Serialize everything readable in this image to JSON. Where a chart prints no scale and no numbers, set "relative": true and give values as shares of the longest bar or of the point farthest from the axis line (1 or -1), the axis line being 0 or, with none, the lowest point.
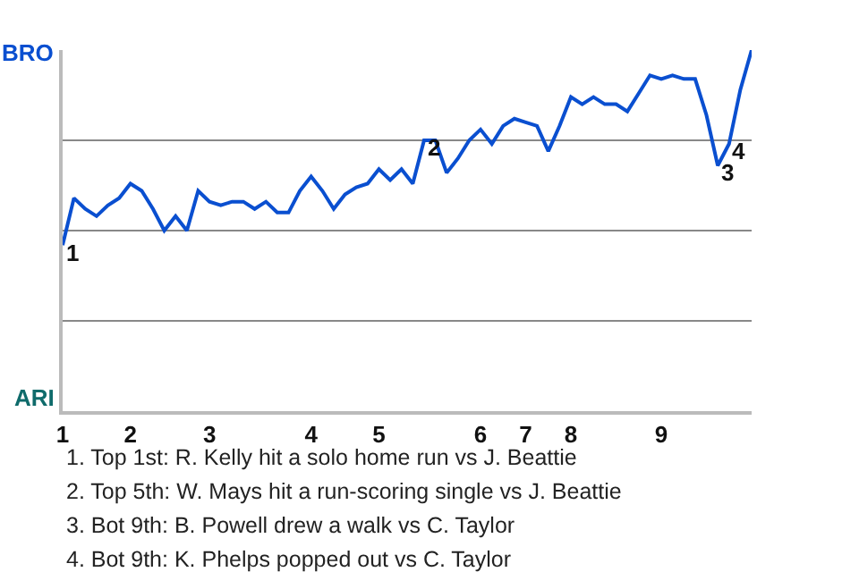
{
  "chart_data": {
    "type": "line",
    "relative": true,
    "categories": [
      "1",
      null,
      null,
      null,
      null,
      null,
      "2",
      null,
      null,
      null,
      null,
      null,
      null,
      "3",
      null,
      null,
      null,
      null,
      null,
      null,
      null,
      null,
      "4",
      null,
      null,
      null,
      null,
      null,
      "5",
      null,
      null,
      null,
      null,
      null,
      null,
      null,
      null,
      "6",
      null,
      null,
      null,
      "7",
      null,
      null,
      null,
      "8",
      null,
      null,
      null,
      null,
      null,
      null,
      null,
      "9",
      null,
      null,
      null,
      null,
      null,
      null,
      null,
      null
    ],
    "series": [
      {
        "color": "#0a4fd0",
        "values": [
          0.46,
          0.59,
          0.56,
          0.54,
          0.57,
          0.59,
          0.63,
          0.61,
          0.56,
          0.5,
          0.54,
          0.5,
          0.61,
          0.58,
          0.57,
          0.58,
          0.58,
          0.56,
          0.58,
          0.55,
          0.55,
          0.61,
          0.65,
          0.61,
          0.56,
          0.6,
          0.62,
          0.63,
          0.67,
          0.64,
          0.67,
          0.63,
          0.75,
          0.75,
          0.66,
          0.7,
          0.75,
          0.78,
          0.74,
          0.79,
          0.81,
          0.8,
          0.79,
          0.72,
          0.79,
          0.87,
          0.85,
          0.87,
          0.85,
          0.85,
          0.83,
          0.88,
          0.93,
          0.92,
          0.93,
          0.92,
          0.92,
          0.82,
          0.68,
          0.74,
          0.89,
          1.0
        ]
      }
    ],
    "grid": "y",
    "marker": "none",
    "line_style": "solid",
    "annotations": [
      {
        "text": "1",
        "y": 0.46
      },
      {
        "text": "2",
        "y": 0.75
      },
      {
        "text": "3",
        "y": 0.68
      },
      {
        "text": "4",
        "y": 0.74
      },
      "BRO",
      "ARI",
      "1. Top 1st: R. Kelly hit a solo home run vs J. Beattie",
      "2. Top 5th: W. Mays hit a run-scoring single vs J. Beattie",
      "3. Bot 9th: B. Powell drew a walk vs C. Taylor",
      "4. Bot 9th: K. Phelps popped out vs C. Taylor"
    ]
  }
}
